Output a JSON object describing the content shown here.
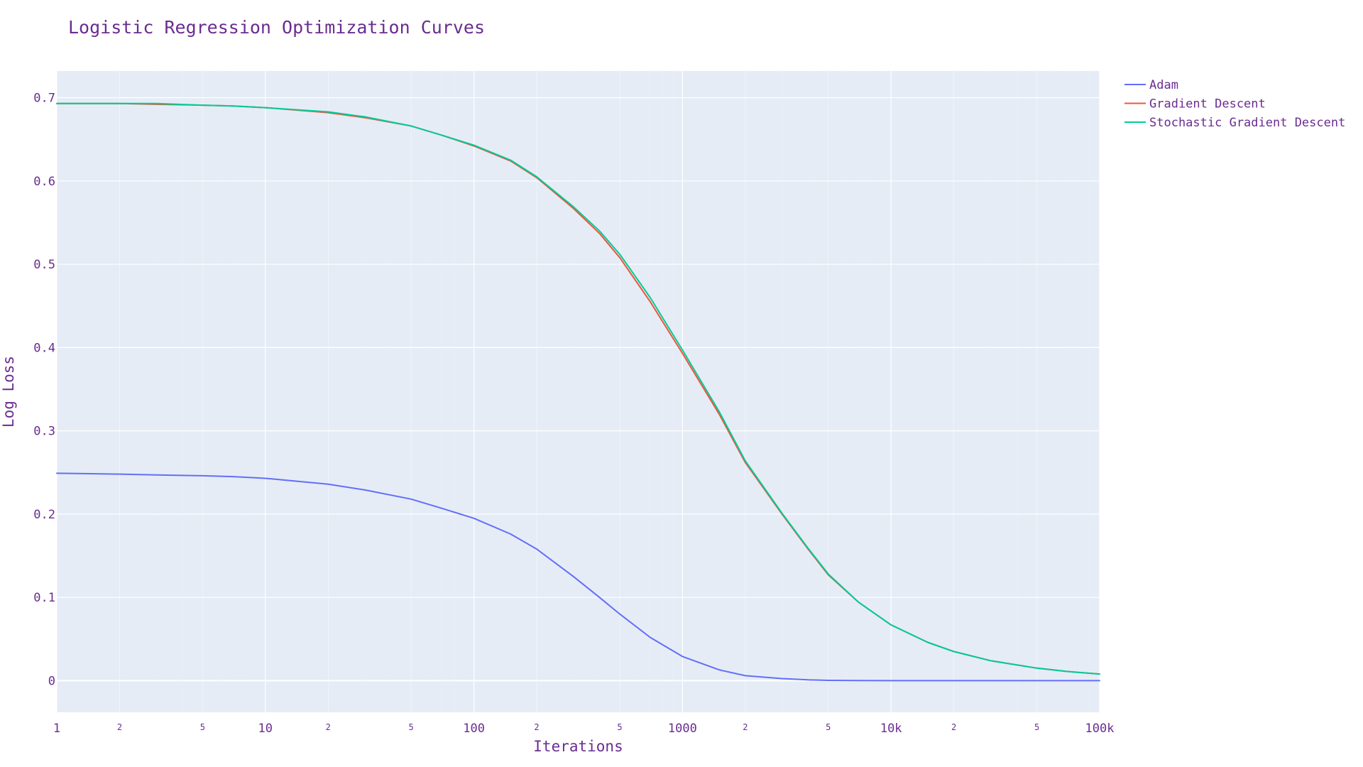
{
  "chart_data": {
    "type": "line",
    "title": "Logistic Regression Optimization Curves",
    "xlabel": "Iterations",
    "ylabel": "Log Loss",
    "x_scale": "log",
    "xlim": [
      1,
      100000
    ],
    "ylim": [
      -0.038,
      0.732
    ],
    "grid": true,
    "legend_position": "top-right, outside plot",
    "x_major_ticks": [
      {
        "value": 1,
        "label": "1"
      },
      {
        "value": 10,
        "label": "10"
      },
      {
        "value": 100,
        "label": "100"
      },
      {
        "value": 1000,
        "label": "1000"
      },
      {
        "value": 10000,
        "label": "10k"
      },
      {
        "value": 100000,
        "label": "100k"
      }
    ],
    "x_minor_tick_labels": [
      "2",
      "5"
    ],
    "y_ticks": [
      {
        "value": 0,
        "label": "0"
      },
      {
        "value": 0.1,
        "label": "0.1"
      },
      {
        "value": 0.2,
        "label": "0.2"
      },
      {
        "value": 0.3,
        "label": "0.3"
      },
      {
        "value": 0.4,
        "label": "0.4"
      },
      {
        "value": 0.5,
        "label": "0.5"
      },
      {
        "value": 0.6,
        "label": "0.6"
      },
      {
        "value": 0.7,
        "label": "0.7"
      }
    ],
    "colors": {
      "plot_background": "#e5ecf6",
      "grid": "#ffffff",
      "text": "#6a2c91"
    },
    "x": [
      1,
      2,
      3,
      5,
      7,
      10,
      20,
      30,
      50,
      70,
      100,
      150,
      200,
      300,
      400,
      500,
      700,
      1000,
      1500,
      2000,
      3000,
      4000,
      5000,
      7000,
      10000,
      15000,
      20000,
      30000,
      50000,
      70000,
      100000
    ],
    "series": [
      {
        "name": "Adam",
        "color": "#636efa",
        "values": [
          0.249,
          0.248,
          0.247,
          0.246,
          0.245,
          0.243,
          0.236,
          0.229,
          0.218,
          0.207,
          0.195,
          0.176,
          0.158,
          0.125,
          0.1,
          0.08,
          0.052,
          0.029,
          0.013,
          0.006,
          0.0025,
          0.001,
          0.0004,
          0.0001,
          0.0,
          0.0,
          0.0,
          0.0,
          0.0,
          0.0,
          0.0
        ]
      },
      {
        "name": "Gradient Descent",
        "color": "#ef553b",
        "values": [
          0.693,
          0.693,
          0.692,
          0.691,
          0.69,
          0.688,
          0.682,
          0.676,
          0.666,
          0.655,
          0.642,
          0.624,
          0.604,
          0.567,
          0.537,
          0.508,
          0.455,
          0.393,
          0.32,
          0.262,
          0.2,
          0.158,
          0.127,
          0.094,
          0.067,
          0.046,
          0.035,
          0.024,
          0.015,
          0.011,
          0.008
        ]
      },
      {
        "name": "Stochastic Gradient Descent",
        "color": "#00cc96",
        "values": [
          0.693,
          0.693,
          0.693,
          0.691,
          0.69,
          0.688,
          0.683,
          0.677,
          0.666,
          0.655,
          0.643,
          0.625,
          0.605,
          0.569,
          0.54,
          0.512,
          0.46,
          0.397,
          0.323,
          0.264,
          0.201,
          0.159,
          0.128,
          0.094,
          0.067,
          0.046,
          0.035,
          0.024,
          0.015,
          0.011,
          0.008
        ]
      }
    ]
  }
}
